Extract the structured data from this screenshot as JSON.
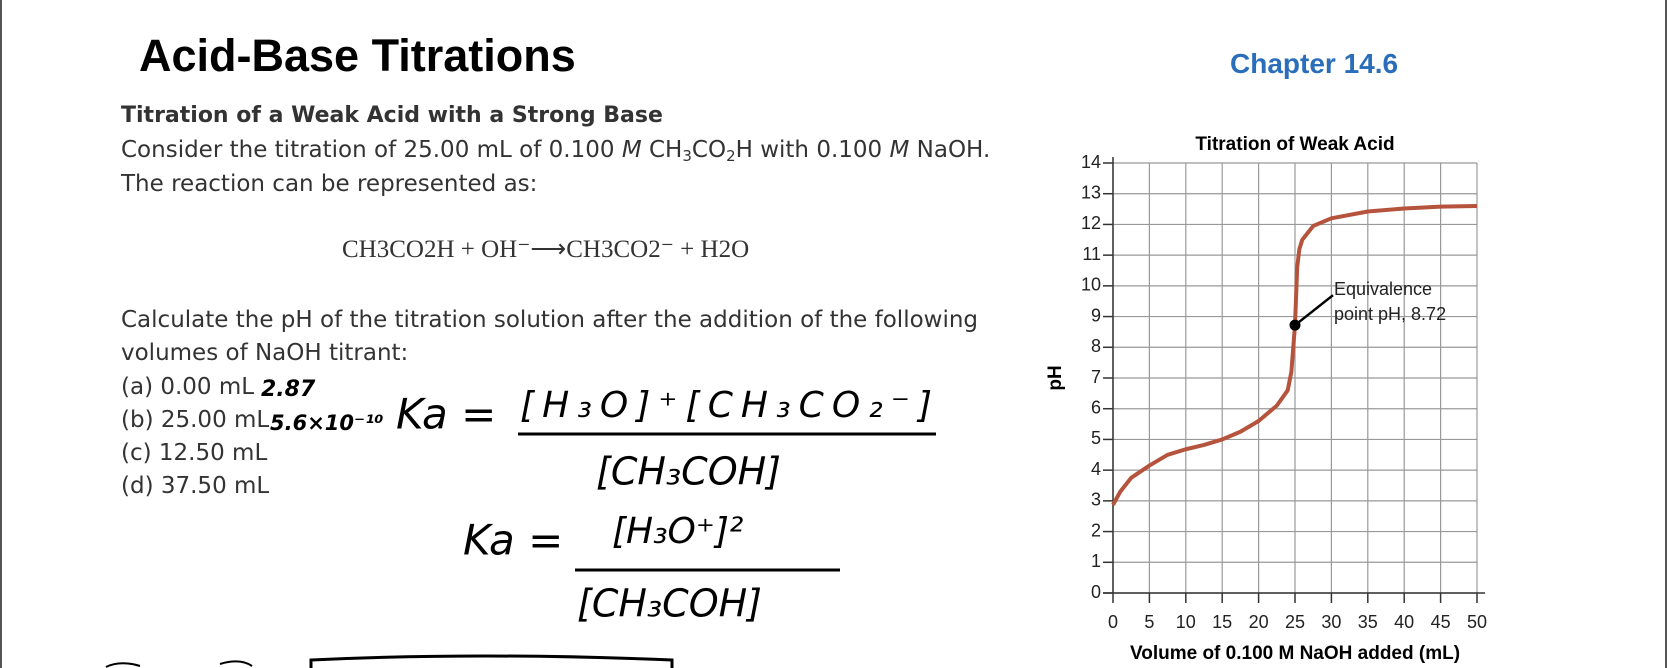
{
  "header": {
    "title": "Acid-Base Titrations",
    "chapter": "Chapter 14.6"
  },
  "body": {
    "heading": "Titration of a Weak Acid with a Strong Base",
    "intro_line1": [
      "Consider the titration of 25.00 mL of 0.100 ",
      "M",
      " CH",
      "3",
      "CO",
      "2",
      "H with 0.100 ",
      "M",
      " NaOH."
    ],
    "intro_line2": "The reaction can be represented as:",
    "equation": "CH3CO2H + OH⁻⟶CH3CO2⁻ + H2O",
    "question_line1": "Calculate the pH of the titration solution after the addition of the following",
    "question_line2": "volumes of NaOH titrant:",
    "items": [
      "(a) 0.00 mL",
      "(b) 25.00 mL",
      "(c) 12.50 mL",
      "(d) 37.50 mL"
    ]
  },
  "handwriting": {
    "answer_a": "2.87",
    "answer_b": "5.6×10⁻¹⁰",
    "ka_label_1": "Ka =",
    "ka_numerator_1": "[H₃O]⁺[CH₃CO₂⁻]",
    "ka_denominator_1": "[CH₃COH]",
    "ka_label_2": "Ka =",
    "ka_numerator_2": "[H₃O⁺]²",
    "ka_denominator_2": "[CH₃COH]"
  },
  "chart_data": {
    "type": "line",
    "title": "Titration of Weak Acid",
    "x_label": "Volume of 0.100 M NaOH added (mL)",
    "y_label": "pH",
    "x": [
      0,
      1,
      2.5,
      5,
      7.5,
      10,
      12.5,
      15,
      17.5,
      20,
      22.5,
      24,
      24.5,
      25,
      25.3,
      25.6,
      26,
      27.5,
      30,
      35,
      40,
      45,
      50
    ],
    "series": [
      {
        "name": "pH",
        "color": "#b5533c",
        "values": [
          2.87,
          3.3,
          3.75,
          4.15,
          4.5,
          4.68,
          4.82,
          5.0,
          5.25,
          5.6,
          6.1,
          6.6,
          7.2,
          8.72,
          10.6,
          11.2,
          11.5,
          11.95,
          12.2,
          12.42,
          12.52,
          12.58,
          12.6
        ]
      }
    ],
    "annotation": {
      "lines": [
        "Equivalence",
        "point pH, 8.72"
      ],
      "x": 25,
      "y": 8.72
    },
    "xlim": [
      0,
      50
    ],
    "ylim": [
      0,
      14
    ],
    "xticks": [
      0,
      5,
      10,
      15,
      20,
      25,
      30,
      35,
      40,
      45,
      50
    ],
    "yticks": [
      0,
      1,
      2,
      3,
      4,
      5,
      6,
      7,
      8,
      9,
      10,
      11,
      12,
      13,
      14
    ],
    "grid": true
  }
}
